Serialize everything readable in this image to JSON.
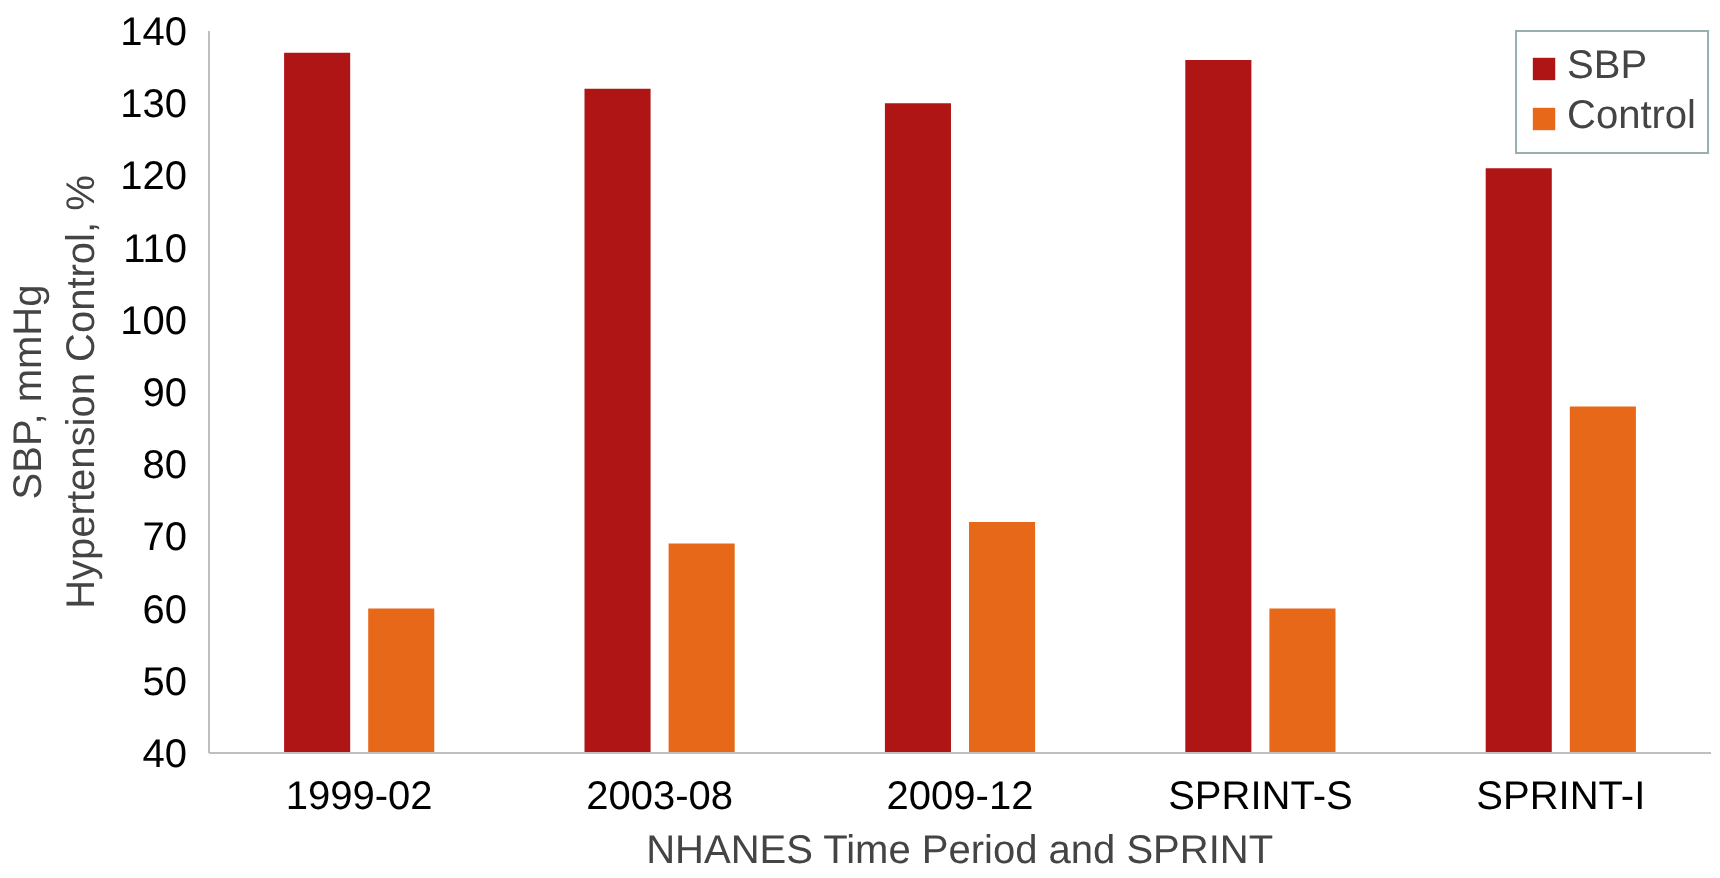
{
  "chart_data": {
    "type": "bar",
    "xlabel": "NHANES Time Period and SPRINT",
    "ylabel": "SBP, mmHg\nHypertension Control, %",
    "categories": [
      "1999-02",
      "2003-08",
      "2009-12",
      "SPRINT-S",
      "SPRINT-I"
    ],
    "series": [
      {
        "name": "SBP",
        "color": "#b01515",
        "values": [
          137,
          132,
          130,
          136,
          121
        ]
      },
      {
        "name": "Control",
        "color": "#e8681a",
        "values": [
          60,
          69,
          72,
          60,
          88
        ]
      }
    ],
    "ylim": [
      40,
      140
    ],
    "yticks": [
      40,
      50,
      60,
      70,
      80,
      90,
      100,
      110,
      120,
      130,
      140
    ],
    "grid": false,
    "legend": "top right"
  }
}
